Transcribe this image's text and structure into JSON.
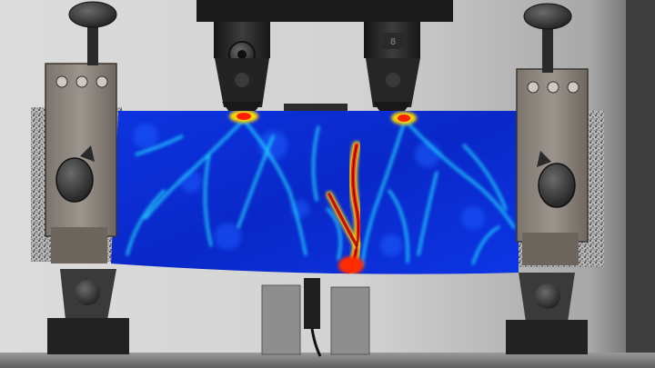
{
  "scene": {
    "subject": "four-point-bending-test-photo",
    "colors": {
      "background_light": "#d9d9d9",
      "background_dark": "#6a6a6a",
      "steel_dark": "#1e1e1e",
      "steel_mid": "#3a3a3a",
      "clamp_wood": "#8c857c",
      "speckle": "#2a2a2a",
      "strain_low": "#0a2fd8",
      "strain_mid": "#18d7ff",
      "strain_high": "#ff2a00",
      "strain_peak": "#ffe800"
    },
    "fixture_mark": "8"
  }
}
